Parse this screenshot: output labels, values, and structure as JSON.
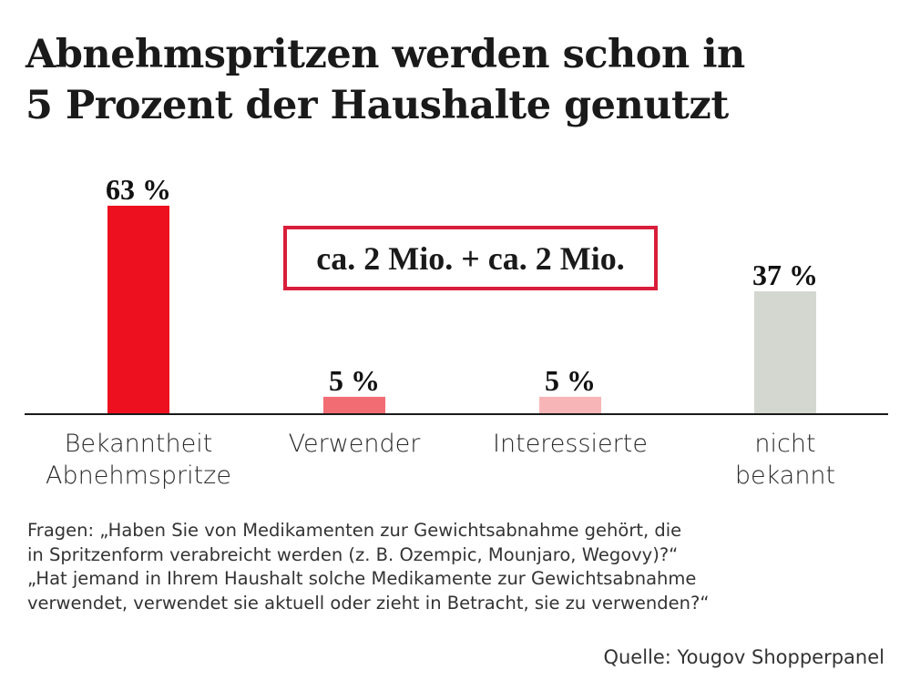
{
  "title_lines": [
    "Abnehmspritzen werden schon in",
    "5 Prozent der Haushalte genutzt"
  ],
  "callout": "ca. 2 Mio. + ca. 2 Mio.",
  "chart_data": {
    "type": "bar",
    "categories": [
      "Bekanntheit\nAbnehmspritze",
      "Verwender",
      "Interessierte",
      "nicht\nbekannt"
    ],
    "values": [
      63,
      5,
      5,
      37
    ],
    "data_labels": [
      "63 %",
      "5 %",
      "5 %",
      "37 %"
    ],
    "colors": [
      "#ed111f",
      "#f26d73",
      "#f8b5b7",
      "#d4d6d0"
    ],
    "unit": "%",
    "ylim": [
      0,
      63
    ],
    "grid": false,
    "axis_color": "#1a1a1a"
  },
  "footnote_lines": [
    "Fragen: „Haben Sie von Medikamenten zur Gewichtsabnahme gehört, die",
    "in Spritzenform verabreicht werden (z. B. Ozempic, Mounjaro, Wegovy)?“",
    "„Hat jemand in Ihrem Haushalt solche Medikamente zur Gewichtsabnahme",
    "verwendet, verwendet sie aktuell oder zieht in Betracht, sie zu verwenden?“"
  ],
  "source": "Quelle: Yougov Shopperpanel",
  "accent_color": "#d81e3a"
}
